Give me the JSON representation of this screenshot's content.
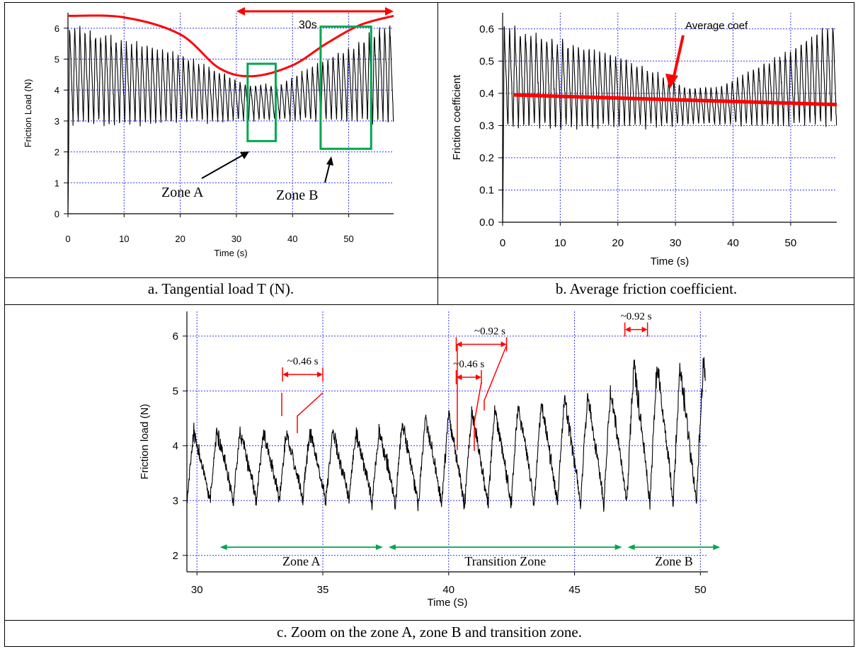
{
  "captions": {
    "a": "a. Tangential load T (N).",
    "b": "b. Average friction coefficient.",
    "c": "c. Zoom on the zone A, zone B and transition zone."
  },
  "colors": {
    "signal": "#000000",
    "grid": "#3333ff",
    "highlight_red": "#ff0000",
    "zone_green": "#00a651"
  },
  "chart_data": [
    {
      "type": "line",
      "panel": "a",
      "title": "",
      "xlabel": "Time (s)",
      "ylabel": "Friction Load (N)",
      "xlim": [
        0,
        58
      ],
      "ylim": [
        0,
        6.5
      ],
      "x_ticks": [
        "0",
        "10",
        "20",
        "30",
        "40",
        "50"
      ],
      "y_ticks": [
        "0",
        "1",
        "2",
        "3",
        "4",
        "5",
        "6"
      ],
      "grid": true,
      "signal": {
        "period_s": 0.92,
        "start_s": 0,
        "end_s": 58,
        "min_early": 2.8,
        "max_early": 6.1,
        "min_mid": 3.0,
        "max_mid": 4.2,
        "min_late": 2.9,
        "max_late": 6.2
      },
      "envelope": {
        "x": [
          0,
          10,
          20,
          27,
          33,
          40,
          46,
          52,
          58
        ],
        "y": [
          6.4,
          6.35,
          5.8,
          4.7,
          4.45,
          4.8,
          5.5,
          6.1,
          6.4
        ]
      },
      "annotations": [
        {
          "text": "30s",
          "x_from": 30,
          "x_to": 58,
          "y": 6.8
        },
        {
          "text": "Zone A",
          "box_x": [
            32,
            37
          ],
          "box_y": [
            2.35,
            4.85
          ]
        },
        {
          "text": "Zone B",
          "box_x": [
            45,
            54
          ],
          "box_y": [
            2.1,
            6.05
          ]
        }
      ]
    },
    {
      "type": "line",
      "panel": "b",
      "title": "",
      "xlabel": "Time (s)",
      "ylabel": "Friction coefficient",
      "xlim": [
        0,
        58
      ],
      "ylim": [
        0,
        0.65
      ],
      "x_ticks": [
        "0",
        "10",
        "20",
        "30",
        "40",
        "50"
      ],
      "y_ticks": [
        "0.0",
        "0.1",
        "0.2",
        "0.3",
        "0.4",
        "0.5",
        "0.6"
      ],
      "grid": true,
      "signal": {
        "period_s": 0.92,
        "start_s": 0,
        "end_s": 58,
        "min_early": 0.28,
        "max_early": 0.61,
        "min_mid": 0.3,
        "max_mid": 0.42,
        "min_late": 0.29,
        "max_late": 0.62
      },
      "average_line": {
        "x": [
          2,
          58
        ],
        "y": [
          0.395,
          0.365
        ]
      },
      "annotations": [
        {
          "text": "Average coef",
          "x": 30,
          "y": 0.385
        }
      ]
    },
    {
      "type": "line",
      "panel": "c",
      "title": "",
      "xlabel": "Time (S)",
      "ylabel": "Friction load (N)",
      "xlim": [
        29.6,
        50.3
      ],
      "ylim": [
        1.7,
        6.45
      ],
      "x_ticks": [
        "30",
        "35",
        "40",
        "45",
        "50"
      ],
      "y_ticks": [
        "2",
        "3",
        "4",
        "5",
        "6"
      ],
      "grid": true,
      "signal": {
        "period_s": 0.92,
        "start_s": 29.6,
        "end_s": 50.2
      },
      "zones": [
        {
          "label": "Zone A",
          "x_from": 30.8,
          "x_to": 37.5,
          "y": 2.15
        },
        {
          "label": "Transition Zone",
          "x_from": 37.5,
          "x_to": 47.0,
          "y": 2.15
        },
        {
          "label": "Zone B",
          "x_from": 47.0,
          "x_to": 50.9,
          "y": 2.15
        }
      ],
      "period_markers": [
        {
          "label": "~0.46 s",
          "x_from": 33.4,
          "x_to": 35.0,
          "y": 5.3
        },
        {
          "label": "~0.92 s",
          "x_from": 40.3,
          "x_to": 42.3,
          "y": 5.85
        },
        {
          "label": "~0.46 s",
          "x_from": 40.3,
          "x_to": 41.3,
          "y": 5.25
        },
        {
          "label": "~0.92 s",
          "x_from": 47.0,
          "x_to": 47.9,
          "y": 6.12
        }
      ]
    }
  ]
}
